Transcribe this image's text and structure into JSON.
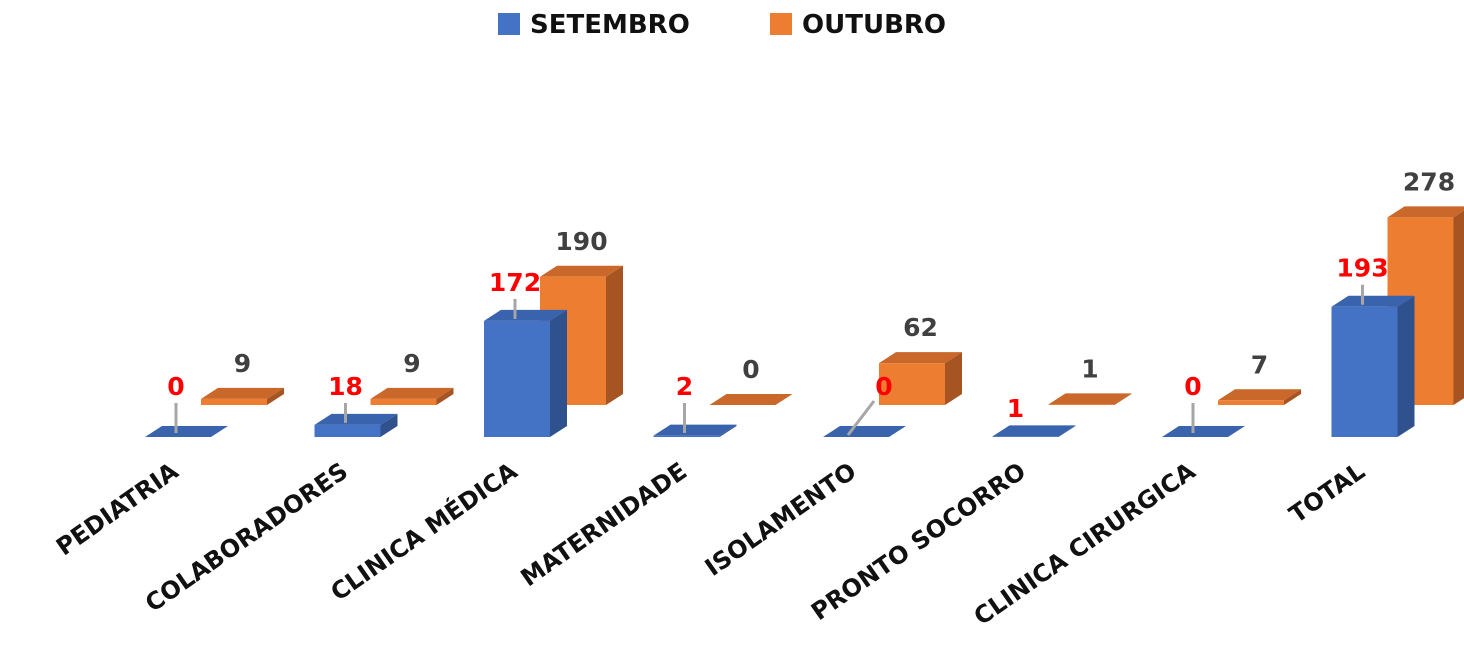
{
  "chart_data": {
    "type": "bar",
    "categories": [
      "PEDIATRIA",
      "COLABORADORES",
      "CLINICA MÉDICA",
      "MATERNIDADE",
      "ISOLAMENTO",
      "PRONTO SOCORRO",
      "CLINICA CIRURGICA",
      "TOTAL"
    ],
    "series": [
      {
        "name": "SETEMBRO",
        "values": [
          0,
          18,
          172,
          2,
          0,
          1,
          0,
          193
        ],
        "labels": [
          "0",
          "18",
          "172",
          "2",
          "0",
          "1",
          "0",
          "193"
        ]
      },
      {
        "name": "OUTUBRO",
        "values": [
          9,
          9,
          190,
          0,
          62,
          1,
          7,
          278
        ],
        "labels": [
          "9",
          "9",
          "190",
          "0",
          "62",
          "1",
          "7",
          "278"
        ]
      }
    ],
    "title": "",
    "xlabel": "",
    "ylabel": "",
    "ylim": [
      0,
      300
    ],
    "grid": false,
    "legend": "top-center",
    "style": "3d-clustered-column"
  },
  "colors": {
    "setembro_front": "#4472C4",
    "setembro_side": "#2F528F",
    "setembro_top": "#3A63AD",
    "outubro_front": "#ED7D31",
    "outubro_side": "#A65422",
    "outubro_top": "#C9682A",
    "label_setembro": "#FF0000",
    "label_outubro": "#404040",
    "leader_line": "#A6A6A6"
  }
}
